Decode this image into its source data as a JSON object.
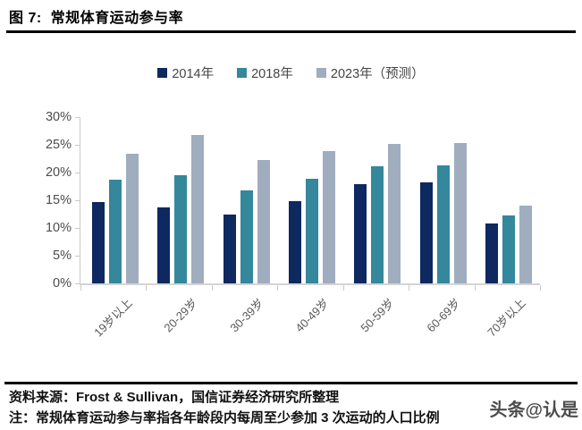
{
  "header": {
    "title": "图 7:  常规体育运动参与率"
  },
  "chart_data": {
    "type": "bar",
    "title": "常规体育运动参与率",
    "categories": [
      "19岁以上",
      "20-29岁",
      "30-39岁",
      "40-49岁",
      "50-59岁",
      "60-69岁",
      "70岁以上"
    ],
    "series": [
      {
        "name": "2014年",
        "color": "#0E2860",
        "values": [
          14.7,
          13.7,
          12.5,
          14.9,
          17.9,
          18.2,
          10.8
        ]
      },
      {
        "name": "2018年",
        "color": "#35879B",
        "values": [
          18.7,
          19.5,
          16.8,
          18.8,
          21.2,
          21.3,
          12.3
        ]
      },
      {
        "name": "2023年（预测）",
        "color": "#9FADBE",
        "values": [
          23.4,
          26.8,
          22.2,
          23.8,
          25.2,
          25.3,
          14.0
        ]
      }
    ],
    "xlabel": "",
    "ylabel": "",
    "ylim": [
      0,
      30
    ],
    "yticks": [
      0,
      5,
      10,
      15,
      20,
      25,
      30
    ],
    "ytick_suffix": "%",
    "grid": false,
    "legend_position": "top",
    "axis_color": "#c9c9c9",
    "tick_label_color": "#4d4d4d"
  },
  "footer": {
    "source": "资料来源：Frost & Sullivan，国信证券经济研究所整理",
    "note": "注：常规体育运动参与率指各年龄段内每周至少参加 3 次运动的人口比例"
  },
  "watermark": {
    "text": "头条@认是"
  }
}
